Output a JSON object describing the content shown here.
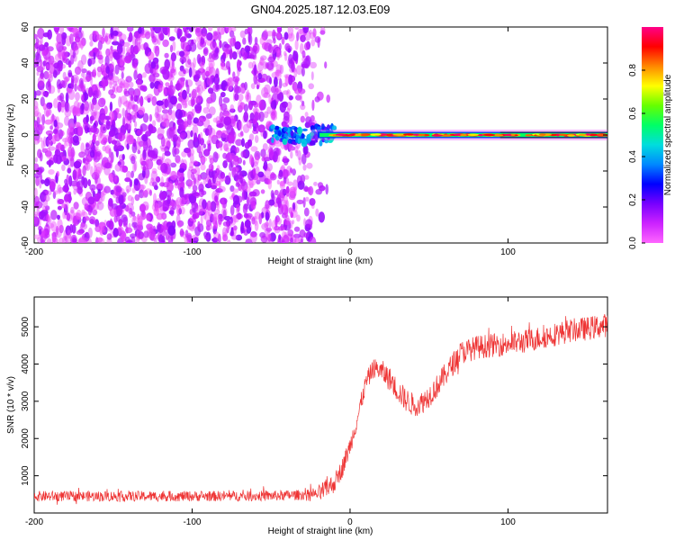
{
  "title": "GN04.2025.187.12.03.E09",
  "chart_data": [
    {
      "type": "heatmap",
      "xlabel": "Height of straight line (km)",
      "ylabel": "Frequency (Hz)",
      "xlim": [
        -200,
        163
      ],
      "ylim": [
        -60,
        60
      ],
      "xticks": [
        -200,
        -100,
        0,
        100
      ],
      "yticks": [
        -60,
        -40,
        -20,
        0,
        20,
        40,
        60
      ],
      "colorbar": {
        "label": "Normalized spectral amplitude",
        "range": [
          0,
          1
        ],
        "ticks": [
          0.0,
          0.2,
          0.4,
          0.6,
          0.8
        ],
        "colors": [
          "#ff66ff",
          "#cc22ff",
          "#7700ff",
          "#0000ff",
          "#0088ff",
          "#00dddd",
          "#00ff66",
          "#66ff00",
          "#ffff00",
          "#ff8800",
          "#ff0000",
          "#ff0088"
        ]
      },
      "noise_region": {
        "x_range": [
          -200,
          -25
        ],
        "y_range": [
          -60,
          60
        ],
        "amplitude": 0.15
      },
      "signal_line": {
        "x_range": [
          -25,
          163
        ],
        "frequency": 0,
        "peak_amplitude": 0.95
      }
    },
    {
      "type": "line",
      "xlabel": "Height of straight line (km)",
      "ylabel": "SNR (10 * v/v)",
      "xlim": [
        -200,
        163
      ],
      "ylim": [
        0,
        5800
      ],
      "xticks": [
        -200,
        -100,
        0,
        100
      ],
      "yticks": [
        1000,
        2000,
        3000,
        4000,
        5000
      ],
      "color": "#ee3333",
      "series": [
        {
          "x": [
            -200,
            -100,
            -50,
            -20,
            -10,
            -5,
            0,
            5,
            10,
            15,
            20,
            25,
            30,
            35,
            40,
            45,
            50,
            55,
            60,
            65,
            70,
            80,
            90,
            100,
            110,
            120,
            130,
            140,
            150,
            163
          ],
          "values": [
            450,
            450,
            460,
            500,
            800,
            1200,
            1800,
            2600,
            3500,
            3900,
            3800,
            3600,
            3300,
            3050,
            2900,
            2950,
            3150,
            3400,
            3700,
            4000,
            4300,
            4450,
            4500,
            4550,
            4600,
            4700,
            4800,
            4900,
            4950,
            5050
          ]
        }
      ]
    }
  ]
}
